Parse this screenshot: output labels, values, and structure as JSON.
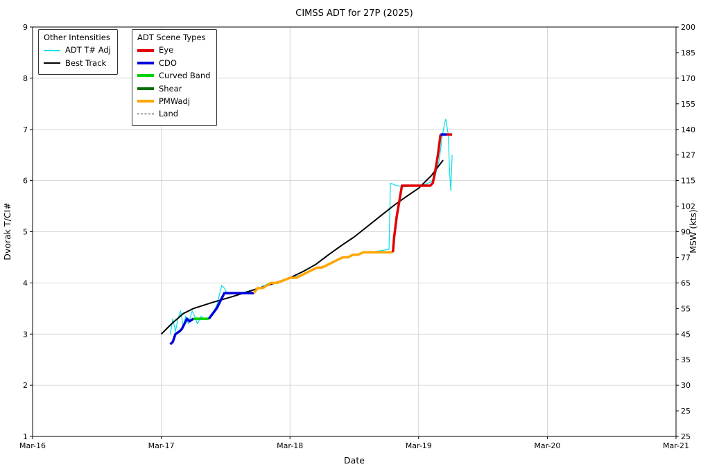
{
  "chart_data": {
    "type": "line",
    "title": "CIMSS ADT for 27P (2025)",
    "xlabel": "Date",
    "ylabel": "Dvorak T/CI#",
    "ylabel_right": "MSW (kts)",
    "x_range": [
      16,
      21
    ],
    "ylim": [
      1,
      9
    ],
    "grid": true,
    "x_tick_values": [
      16,
      17,
      18,
      19,
      20,
      21
    ],
    "x_tick_labels": [
      "Mar-16",
      "Mar-17",
      "Mar-18",
      "Mar-19",
      "Mar-20",
      "Mar-21"
    ],
    "y_ticks_left": [
      1,
      2,
      3,
      4,
      5,
      6,
      7,
      8,
      9
    ],
    "right_axis": {
      "note": "MSW kts labels at every 0.5 T# from 1.0 to 9.0",
      "labels": [
        "25",
        "25",
        "30",
        "35",
        "45",
        "55",
        "65",
        "77",
        "90",
        "102",
        "115",
        "127",
        "140",
        "155",
        "170",
        "185",
        "200"
      ]
    },
    "series": [
      {
        "name": "ADT T# Adj",
        "color": "#00dfe8",
        "width": 1.2,
        "points": [
          [
            17.07,
            3.0
          ],
          [
            17.09,
            3.3
          ],
          [
            17.11,
            3.05
          ],
          [
            17.13,
            3.3
          ],
          [
            17.15,
            3.45
          ],
          [
            17.17,
            3.15
          ],
          [
            17.19,
            3.35
          ],
          [
            17.21,
            3.2
          ],
          [
            17.24,
            3.45
          ],
          [
            17.26,
            3.35
          ],
          [
            17.28,
            3.2
          ],
          [
            17.31,
            3.35
          ],
          [
            17.34,
            3.28
          ],
          [
            17.37,
            3.32
          ],
          [
            17.4,
            3.42
          ],
          [
            17.43,
            3.55
          ],
          [
            17.45,
            3.75
          ],
          [
            17.47,
            3.95
          ],
          [
            17.49,
            3.9
          ],
          [
            17.51,
            3.8
          ],
          [
            17.56,
            3.8
          ],
          [
            17.61,
            3.8
          ],
          [
            17.66,
            3.83
          ],
          [
            17.71,
            3.86
          ],
          [
            17.76,
            3.9
          ],
          [
            17.8,
            3.95
          ],
          [
            17.84,
            4.0
          ],
          [
            17.88,
            4.0
          ],
          [
            17.92,
            4.03
          ],
          [
            17.96,
            4.06
          ],
          [
            18.0,
            4.1
          ],
          [
            18.05,
            4.13
          ],
          [
            18.1,
            4.17
          ],
          [
            18.14,
            4.22
          ],
          [
            18.18,
            4.27
          ],
          [
            18.22,
            4.3
          ],
          [
            18.26,
            4.33
          ],
          [
            18.3,
            4.37
          ],
          [
            18.34,
            4.42
          ],
          [
            18.38,
            4.46
          ],
          [
            18.42,
            4.5
          ],
          [
            18.46,
            4.52
          ],
          [
            18.5,
            4.55
          ],
          [
            18.54,
            4.57
          ],
          [
            18.58,
            4.6
          ],
          [
            18.63,
            4.6
          ],
          [
            18.68,
            4.62
          ],
          [
            18.73,
            4.64
          ],
          [
            18.77,
            4.66
          ],
          [
            18.78,
            5.95
          ],
          [
            18.83,
            5.9
          ],
          [
            18.89,
            5.88
          ],
          [
            18.95,
            5.9
          ],
          [
            19.01,
            5.9
          ],
          [
            19.06,
            5.93
          ],
          [
            19.1,
            5.98
          ],
          [
            19.13,
            6.1
          ],
          [
            19.16,
            6.4
          ],
          [
            19.18,
            6.8
          ],
          [
            19.2,
            7.1
          ],
          [
            19.21,
            7.2
          ],
          [
            19.23,
            6.9
          ],
          [
            19.24,
            6.2
          ],
          [
            19.25,
            5.8
          ],
          [
            19.26,
            6.5
          ]
        ]
      },
      {
        "name": "Best Track",
        "color": "#000000",
        "width": 2,
        "points": [
          [
            17.0,
            3.0
          ],
          [
            17.08,
            3.2
          ],
          [
            17.17,
            3.4
          ],
          [
            17.25,
            3.5
          ],
          [
            17.4,
            3.62
          ],
          [
            17.55,
            3.73
          ],
          [
            17.7,
            3.85
          ],
          [
            17.85,
            3.97
          ],
          [
            18.0,
            4.1
          ],
          [
            18.1,
            4.22
          ],
          [
            18.2,
            4.36
          ],
          [
            18.3,
            4.55
          ],
          [
            18.4,
            4.73
          ],
          [
            18.5,
            4.9
          ],
          [
            18.6,
            5.1
          ],
          [
            18.7,
            5.3
          ],
          [
            18.8,
            5.5
          ],
          [
            18.9,
            5.68
          ],
          [
            19.0,
            5.85
          ],
          [
            19.1,
            6.1
          ],
          [
            19.19,
            6.4
          ]
        ]
      },
      {
        "name": "ADT Scene Types",
        "width": 3.5,
        "segments": [
          {
            "scene": "CDO",
            "color": "#0000dd",
            "points": [
              [
                17.07,
                2.8
              ],
              [
                17.09,
                2.85
              ],
              [
                17.11,
                3.0
              ],
              [
                17.14,
                3.05
              ],
              [
                17.16,
                3.1
              ],
              [
                17.18,
                3.2
              ],
              [
                17.2,
                3.3
              ],
              [
                17.22,
                3.25
              ],
              [
                17.25,
                3.3
              ]
            ]
          },
          {
            "scene": "Curved Band",
            "color": "#00d000",
            "points": [
              [
                17.25,
                3.3
              ],
              [
                17.29,
                3.3
              ],
              [
                17.33,
                3.3
              ],
              [
                17.37,
                3.3
              ]
            ]
          },
          {
            "scene": "CDO",
            "color": "#0000dd",
            "points": [
              [
                17.37,
                3.3
              ],
              [
                17.4,
                3.4
              ],
              [
                17.43,
                3.5
              ],
              [
                17.46,
                3.65
              ],
              [
                17.49,
                3.8
              ],
              [
                17.54,
                3.8
              ],
              [
                17.6,
                3.8
              ],
              [
                17.66,
                3.8
              ],
              [
                17.72,
                3.8
              ]
            ]
          },
          {
            "scene": "PMWadj",
            "color": "#ffa500",
            "points": [
              [
                17.72,
                3.8
              ],
              [
                17.75,
                3.9
              ],
              [
                17.79,
                3.9
              ],
              [
                17.82,
                3.95
              ],
              [
                17.85,
                4.0
              ],
              [
                17.9,
                4.0
              ],
              [
                17.95,
                4.05
              ],
              [
                18.0,
                4.1
              ],
              [
                18.05,
                4.1
              ],
              [
                18.09,
                4.15
              ],
              [
                18.13,
                4.2
              ],
              [
                18.17,
                4.25
              ],
              [
                18.21,
                4.3
              ],
              [
                18.25,
                4.3
              ],
              [
                18.29,
                4.35
              ],
              [
                18.33,
                4.4
              ],
              [
                18.37,
                4.45
              ],
              [
                18.41,
                4.5
              ],
              [
                18.45,
                4.5
              ],
              [
                18.49,
                4.55
              ],
              [
                18.53,
                4.55
              ],
              [
                18.57,
                4.6
              ],
              [
                18.63,
                4.6
              ],
              [
                18.69,
                4.6
              ],
              [
                18.75,
                4.6
              ],
              [
                18.8,
                4.6
              ]
            ]
          },
          {
            "scene": "Eye",
            "color": "#e00000",
            "points": [
              [
                18.8,
                4.6
              ],
              [
                18.81,
                4.9
              ],
              [
                18.83,
                5.3
              ],
              [
                18.85,
                5.6
              ],
              [
                18.87,
                5.9
              ],
              [
                18.94,
                5.9
              ],
              [
                19.0,
                5.9
              ],
              [
                19.06,
                5.9
              ],
              [
                19.09,
                5.9
              ],
              [
                19.11,
                5.95
              ],
              [
                19.13,
                6.2
              ],
              [
                19.15,
                6.5
              ],
              [
                19.17,
                6.9
              ]
            ]
          },
          {
            "scene": "CDO",
            "color": "#0000dd",
            "points": [
              [
                19.17,
                6.9
              ],
              [
                19.22,
                6.9
              ]
            ]
          },
          {
            "scene": "Eye",
            "color": "#e00000",
            "points": [
              [
                19.22,
                6.9
              ],
              [
                19.26,
                6.9
              ]
            ]
          }
        ]
      }
    ]
  },
  "legends": {
    "other": {
      "title": "Other Intensities",
      "items": [
        {
          "label": "ADT T# Adj",
          "color": "#00dfe8",
          "style": "thin-line"
        },
        {
          "label": "Best Track",
          "color": "#000000",
          "style": "medium-line"
        }
      ]
    },
    "scene": {
      "title": "ADT Scene Types",
      "items": [
        {
          "label": "Eye",
          "color": "#e00000",
          "style": "thick-line"
        },
        {
          "label": "CDO",
          "color": "#0000dd",
          "style": "thick-line"
        },
        {
          "label": "Curved Band",
          "color": "#00d000",
          "style": "thick-line"
        },
        {
          "label": "Shear",
          "color": "#007000",
          "style": "thick-line"
        },
        {
          "label": "PMWadj",
          "color": "#ffa500",
          "style": "thick-line"
        },
        {
          "label": "Land",
          "color": "#000000",
          "style": "dashed-line"
        }
      ]
    }
  }
}
